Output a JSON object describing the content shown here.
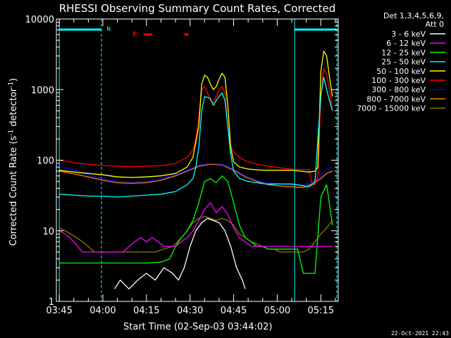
{
  "chart_data": {
    "type": "line",
    "title": "RHESSI Observing Summary Count Rates, Corrected",
    "xlabel": "Start Time (02-Sep-03 03:44:02)",
    "ylabel": "Corrected Count Rate (s⁻¹ detector⁻¹)",
    "ylim": [
      1,
      10000
    ],
    "yscale": "log",
    "xlim_minutes": [
      -1,
      96
    ],
    "x_ticks": [
      {
        "label": "03:45",
        "minute": 0
      },
      {
        "label": "04:00",
        "minute": 15
      },
      {
        "label": "04:15",
        "minute": 30
      },
      {
        "label": "04:30",
        "minute": 45
      },
      {
        "label": "04:45",
        "minute": 60
      },
      {
        "label": "05:00",
        "minute": 75
      },
      {
        "label": "05:15",
        "minute": 90
      }
    ],
    "y_ticks": [
      {
        "label": "1",
        "value": 1
      },
      {
        "label": "10",
        "value": 10
      },
      {
        "label": "100",
        "value": 100
      },
      {
        "label": "1000",
        "value": 1000
      },
      {
        "label": "10000",
        "value": 10000
      }
    ],
    "legend_header": [
      "Det 1,3,4,5,6,9,",
      "Att 0"
    ],
    "legend_position": "right",
    "series": [
      {
        "name": "3 - 6 keV",
        "color": "#ffffff",
        "x": [
          0,
          17,
          19,
          21,
          24,
          27,
          30,
          33,
          36,
          39,
          41,
          43,
          45,
          47,
          49,
          51,
          53,
          55,
          57,
          59,
          61,
          63,
          64,
          65
        ],
        "y": [
          null,
          null,
          1.5,
          2,
          1.5,
          2,
          2.5,
          2,
          3,
          2.5,
          2,
          3,
          6,
          10,
          13,
          15,
          14,
          13,
          10,
          6,
          3,
          2,
          1.5,
          null
        ]
      },
      {
        "name": "6 - 12 keV",
        "color": "#ff00ff",
        "x": [
          0,
          2,
          5,
          8,
          11,
          14,
          16,
          18,
          20,
          22,
          24,
          26,
          28,
          30,
          32,
          34,
          36,
          38,
          40,
          42,
          44,
          46,
          48,
          50,
          52,
          54,
          56,
          58,
          60,
          62,
          64,
          66,
          68,
          70,
          72,
          74,
          76,
          78,
          80,
          82,
          84,
          86,
          88,
          90,
          92,
          94
        ],
        "y": [
          10,
          9,
          7,
          5,
          5,
          5,
          5,
          5,
          5,
          5,
          6,
          7,
          8,
          7,
          8,
          7,
          6,
          6,
          6,
          7,
          8,
          10,
          14,
          20,
          25,
          18,
          22,
          17,
          11,
          8,
          7,
          6,
          6,
          6,
          6,
          6,
          6,
          6,
          6,
          6,
          6,
          6,
          6,
          6,
          6,
          6
        ]
      },
      {
        "name": "12 - 25 keV",
        "color": "#00ff00",
        "x": [
          0,
          5,
          10,
          15,
          20,
          25,
          30,
          35,
          38,
          40,
          42,
          44,
          46,
          48,
          50,
          52,
          54,
          56,
          58,
          60,
          62,
          64,
          66,
          68,
          70,
          72,
          74,
          76,
          78,
          80,
          82,
          84,
          86,
          88,
          90,
          92,
          94
        ],
        "y": [
          3.5,
          3.5,
          3.5,
          3.5,
          3.5,
          3.5,
          3.5,
          3.6,
          4,
          6,
          8,
          10,
          14,
          25,
          50,
          55,
          48,
          60,
          50,
          25,
          12,
          8,
          7,
          6,
          6,
          5.5,
          5.5,
          5.5,
          5.5,
          5.5,
          5.5,
          2.5,
          2.5,
          2.5,
          30,
          45,
          12
        ]
      },
      {
        "name": "25 - 50 keV",
        "color": "#00ffff",
        "x": [
          0,
          5,
          10,
          15,
          20,
          25,
          30,
          35,
          40,
          44,
          46,
          47,
          48,
          49,
          50,
          52,
          53,
          54,
          55,
          56,
          57,
          58,
          59,
          60,
          62,
          65,
          68,
          71,
          74,
          77,
          80,
          83,
          86,
          87,
          88,
          90,
          91,
          92,
          93,
          94
        ],
        "y": [
          33,
          32,
          31,
          31,
          30,
          31,
          32,
          33,
          36,
          45,
          55,
          80,
          150,
          500,
          800,
          750,
          600,
          700,
          800,
          900,
          700,
          300,
          120,
          70,
          55,
          50,
          48,
          46,
          46,
          46,
          46,
          44,
          42,
          45,
          50,
          800,
          1500,
          1000,
          700,
          500
        ]
      },
      {
        "name": "50 - 100 keV",
        "color": "#ffff00",
        "x": [
          0,
          5,
          10,
          15,
          20,
          25,
          30,
          35,
          40,
          44,
          46,
          48,
          49,
          50,
          51,
          52,
          53,
          54,
          55,
          56,
          57,
          58,
          59,
          60,
          62,
          65,
          68,
          71,
          74,
          77,
          80,
          83,
          86,
          88,
          89,
          90,
          91,
          92,
          93,
          94
        ],
        "y": [
          72,
          68,
          65,
          62,
          58,
          57,
          58,
          60,
          65,
          80,
          110,
          300,
          1200,
          1600,
          1500,
          1200,
          1000,
          1100,
          1400,
          1700,
          1500,
          600,
          150,
          95,
          80,
          75,
          73,
          72,
          72,
          72,
          72,
          70,
          68,
          70,
          80,
          1800,
          3500,
          3000,
          1500,
          800
        ]
      },
      {
        "name": "100 - 300 keV",
        "color": "#ff0000",
        "x": [
          0,
          5,
          10,
          15,
          20,
          25,
          30,
          35,
          40,
          44,
          46,
          47,
          48,
          49,
          50,
          51,
          52,
          53,
          54,
          55,
          56,
          57,
          58,
          59,
          60,
          62,
          64,
          66,
          68,
          70,
          72,
          74,
          76,
          78,
          80,
          83,
          86,
          87,
          88,
          89,
          90,
          91,
          92,
          93,
          94
        ],
        "y": [
          100,
          92,
          88,
          84,
          82,
          81,
          82,
          84,
          90,
          110,
          140,
          200,
          400,
          1000,
          1100,
          900,
          700,
          650,
          800,
          1000,
          1100,
          900,
          300,
          160,
          130,
          110,
          98,
          92,
          88,
          85,
          82,
          80,
          78,
          76,
          75,
          74,
          74,
          45,
          45,
          60,
          800,
          2000,
          1600,
          1000,
          500
        ]
      },
      {
        "name": "300 - 800 keV",
        "color": "#0000ff",
        "x": [
          0,
          5,
          10,
          15,
          20,
          25,
          30,
          35,
          40,
          44,
          48,
          52,
          56,
          60,
          64,
          68,
          72,
          76,
          80,
          84,
          88,
          90,
          92,
          94
        ],
        "y": [
          82,
          72,
          62,
          54,
          50,
          49,
          50,
          55,
          62,
          72,
          85,
          90,
          88,
          75,
          60,
          52,
          48,
          46,
          45,
          44,
          50,
          60,
          75,
          80
        ]
      },
      {
        "name": "800 - 7000 keV",
        "color": "#ff8000",
        "x": [
          0,
          5,
          10,
          15,
          20,
          25,
          30,
          35,
          40,
          44,
          48,
          52,
          56,
          60,
          64,
          68,
          72,
          76,
          80,
          84,
          88,
          90,
          92,
          94
        ],
        "y": [
          70,
          64,
          58,
          52,
          48,
          47,
          48,
          52,
          60,
          70,
          82,
          88,
          86,
          72,
          58,
          50,
          45,
          43,
          42,
          41,
          48,
          55,
          65,
          70
        ]
      },
      {
        "name": "7000 - 15000 keV",
        "color": "#808000",
        "x": [
          0,
          2,
          4,
          6,
          8,
          10,
          12,
          15,
          18,
          21,
          24,
          27,
          30,
          33,
          36,
          39,
          40,
          42,
          44,
          46,
          48,
          50,
          52,
          54,
          56,
          58,
          60,
          62,
          64,
          66,
          68,
          70,
          72,
          74,
          76,
          78,
          80,
          82,
          84,
          86,
          88,
          90,
          92,
          94
        ],
        "y": [
          11,
          10,
          9,
          8,
          7,
          6,
          5,
          5,
          5,
          5,
          5,
          5,
          5,
          5,
          5.5,
          6,
          6.5,
          8,
          10,
          13,
          15,
          16,
          15,
          14,
          15,
          14,
          12,
          9,
          8,
          7,
          6.5,
          6,
          5.5,
          5.5,
          5,
          5,
          5,
          5,
          5,
          5.5,
          7,
          9,
          11,
          14
        ]
      }
    ],
    "annotations": {
      "night_bars": [
        [
          0,
          14.5
        ],
        [
          81,
          95.5
        ]
      ],
      "night_label": "N",
      "night_label_minute": 17,
      "dashed_lines_minutes": [
        14.5,
        95.5
      ],
      "solid_lines_minutes": [
        0,
        81
      ],
      "flare_bars": [
        [
          29,
          32
        ],
        [
          43,
          44.5
        ]
      ],
      "flare_label": "F",
      "flare_label_minute": 26
    }
  },
  "footer": {
    "timestamp": "22-Oct-2021 22:43"
  }
}
